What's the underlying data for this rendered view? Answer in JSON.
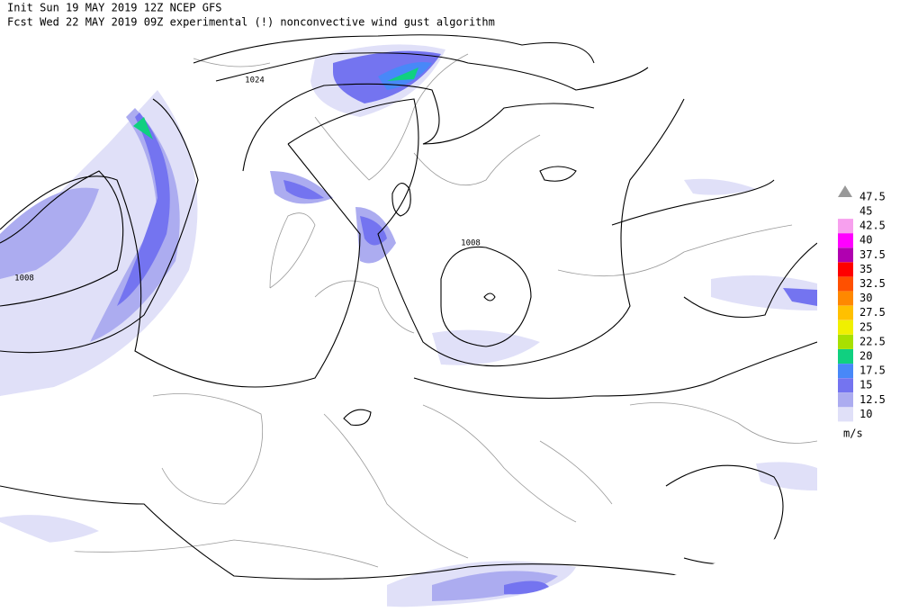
{
  "header": {
    "line1": "Init  Sun 19 MAY 2019 12Z  NCEP GFS",
    "line2": "Fcst Wed 22 MAY 2019 09Z  experimental (!) nonconvective wind gust algorithm"
  },
  "contour_labels": [
    "1024",
    "1008",
    "1008"
  ],
  "legend": {
    "top_label": "47.5",
    "levels": [
      {
        "label": "45",
        "color": "#ffffff"
      },
      {
        "label": "42.5",
        "color": "#f7a0ee"
      },
      {
        "label": "40",
        "color": "#ff00ff"
      },
      {
        "label": "37.5",
        "color": "#b000b0"
      },
      {
        "label": "35",
        "color": "#ff0000"
      },
      {
        "label": "32.5",
        "color": "#ff5000"
      },
      {
        "label": "30",
        "color": "#ff8800"
      },
      {
        "label": "27.5",
        "color": "#ffc000"
      },
      {
        "label": "25",
        "color": "#f0f000"
      },
      {
        "label": "22.5",
        "color": "#a8e000"
      },
      {
        "label": "20",
        "color": "#10d080"
      },
      {
        "label": "17.5",
        "color": "#4888f8"
      },
      {
        "label": "15",
        "color": "#7474f0"
      },
      {
        "label": "12.5",
        "color": "#acacf0"
      },
      {
        "label": "10",
        "color": "#e0e0f8"
      }
    ],
    "unit": "m/s"
  }
}
